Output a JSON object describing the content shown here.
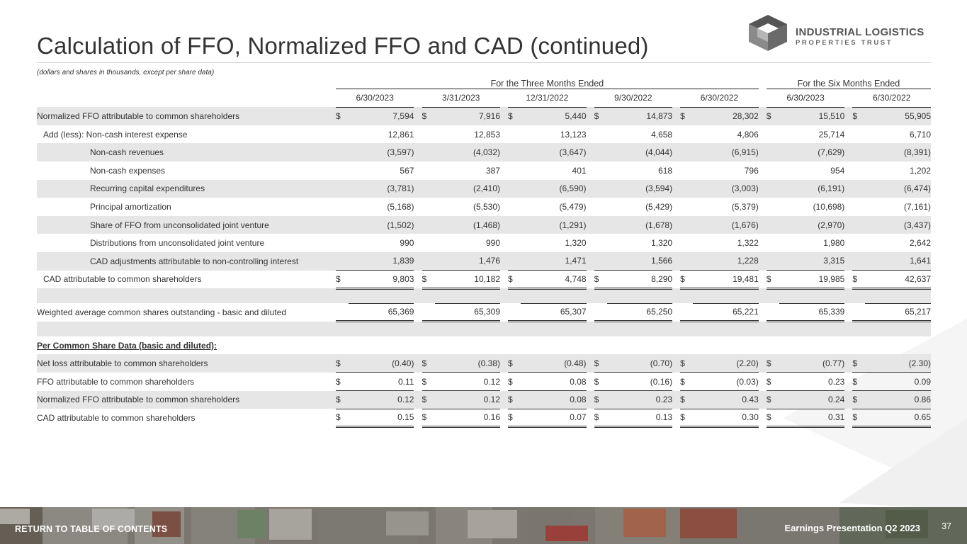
{
  "header": {
    "title": "Calculation of FFO, Normalized FFO and CAD (continued)",
    "logo_line1": "INDUSTRIAL LOGISTICS",
    "logo_line2": "PROPERTIES TRUST",
    "note": "(dollars and shares in thousands, except per share data)"
  },
  "table": {
    "group_three": "For the Three Months Ended",
    "group_six": "For the Six Months Ended",
    "dates": [
      "6/30/2023",
      "3/31/2023",
      "12/31/2022",
      "9/30/2022",
      "6/30/2022",
      "6/30/2023",
      "6/30/2022"
    ],
    "rows": [
      {
        "label": "Normalized FFO attributable to common shareholders",
        "cur": true,
        "values": [
          "7,594",
          "7,916",
          "5,440",
          "14,873",
          "28,302",
          "15,510",
          "55,905"
        ]
      },
      {
        "label": "Add (less): Non-cash interest expense",
        "values": [
          "12,861",
          "12,853",
          "13,123",
          "4,658",
          "4,806",
          "25,714",
          "6,710"
        ]
      },
      {
        "label": "Non-cash revenues",
        "values": [
          "(3,597)",
          "(4,032)",
          "(3,647)",
          "(4,044)",
          "(6,915)",
          "(7,629)",
          "(8,391)"
        ]
      },
      {
        "label": "Non-cash expenses",
        "values": [
          "567",
          "387",
          "401",
          "618",
          "796",
          "954",
          "1,202"
        ]
      },
      {
        "label": "Recurring capital expenditures",
        "values": [
          "(3,781)",
          "(2,410)",
          "(6,590)",
          "(3,594)",
          "(3,003)",
          "(6,191)",
          "(6,474)"
        ]
      },
      {
        "label": "Principal amortization",
        "values": [
          "(5,168)",
          "(5,530)",
          "(5,479)",
          "(5,429)",
          "(5,379)",
          "(10,698)",
          "(7,161)"
        ]
      },
      {
        "label": "Share of FFO from unconsolidated joint venture",
        "values": [
          "(1,502)",
          "(1,468)",
          "(1,291)",
          "(1,678)",
          "(1,676)",
          "(2,970)",
          "(3,437)"
        ]
      },
      {
        "label": "Distributions from unconsolidated joint venture",
        "values": [
          "990",
          "990",
          "1,320",
          "1,320",
          "1,322",
          "1,980",
          "2,642"
        ]
      },
      {
        "label": "CAD adjustments attributable to non-controlling interest",
        "values": [
          "1,839",
          "1,476",
          "1,471",
          "1,566",
          "1,228",
          "3,315",
          "1,641"
        ]
      },
      {
        "label": "CAD attributable to common shareholders",
        "cur": true,
        "values": [
          "9,803",
          "10,182",
          "4,748",
          "8,290",
          "19,481",
          "19,985",
          "42,637"
        ]
      },
      {
        "label": "Weighted average common shares outstanding - basic and diluted",
        "values": [
          "65,369",
          "65,309",
          "65,307",
          "65,250",
          "65,221",
          "65,339",
          "65,217"
        ]
      },
      {
        "label": "Per Common Share Data (basic and diluted):"
      },
      {
        "label": "Net loss attributable to common shareholders",
        "cur": true,
        "values": [
          "(0.40)",
          "(0.38)",
          "(0.48)",
          "(0.70)",
          "(2.20)",
          "(0.77)",
          "(2.30)"
        ]
      },
      {
        "label": "FFO attributable to common shareholders",
        "cur": true,
        "values": [
          "0.11",
          "0.12",
          "0.08",
          "(0.16)",
          "(0.03)",
          "0.23",
          "0.09"
        ]
      },
      {
        "label": "Normalized FFO attributable to common shareholders",
        "cur": true,
        "values": [
          "0.12",
          "0.12",
          "0.08",
          "0.23",
          "0.43",
          "0.24",
          "0.86"
        ]
      },
      {
        "label": "CAD attributable to common shareholders",
        "cur": true,
        "values": [
          "0.15",
          "0.16",
          "0.07",
          "0.13",
          "0.30",
          "0.31",
          "0.65"
        ]
      }
    ],
    "currency_symbol": "$"
  },
  "footer": {
    "toc_link": "RETURN TO TABLE OF CONTENTS",
    "presentation": "Earnings Presentation Q2 2023",
    "page": "37"
  },
  "colors": {
    "shade": "#e6e6e6",
    "logo_dark": "#555555",
    "logo_mid": "#8a8a8a",
    "logo_light": "#b5b5b5"
  }
}
